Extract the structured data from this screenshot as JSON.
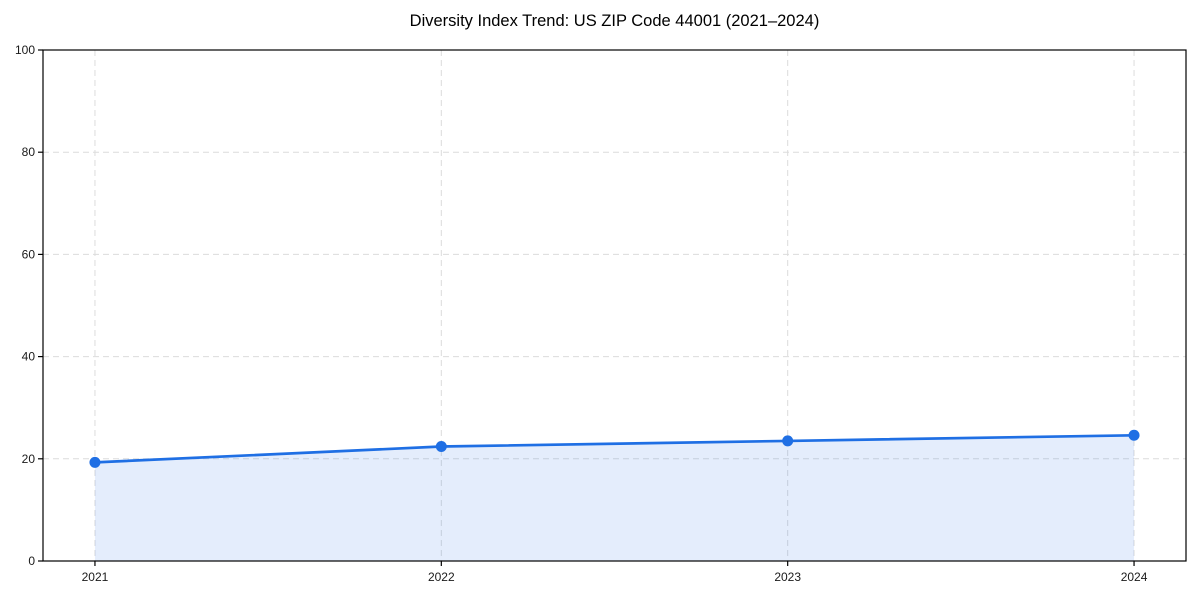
{
  "chart_data": {
    "type": "area",
    "title": "Diversity Index Trend: US ZIP Code 44001 (2021–2024)",
    "xlabel": "",
    "ylabel": "",
    "x": [
      2021,
      2022,
      2023,
      2024
    ],
    "series": [
      {
        "name": "Diversity Index",
        "values": [
          19.3,
          22.4,
          23.5,
          24.6
        ]
      }
    ],
    "xticks": [
      "2021",
      "2022",
      "2023",
      "2024"
    ],
    "yticks": [
      0,
      20,
      40,
      60,
      80,
      100
    ],
    "xlim": [
      2020.85,
      2024.15
    ],
    "ylim": [
      0,
      100
    ],
    "grid": "dashed-both",
    "legend": "none",
    "colors": {
      "line": "#1f6fe4",
      "marker": "#1f6fe4",
      "area_fill": "#1f6fe4",
      "area_opacity": 0.12,
      "grid": "#dcdcdc",
      "axis": "#000000",
      "tick_text": "#1a1a1a",
      "background": "#ffffff"
    }
  }
}
